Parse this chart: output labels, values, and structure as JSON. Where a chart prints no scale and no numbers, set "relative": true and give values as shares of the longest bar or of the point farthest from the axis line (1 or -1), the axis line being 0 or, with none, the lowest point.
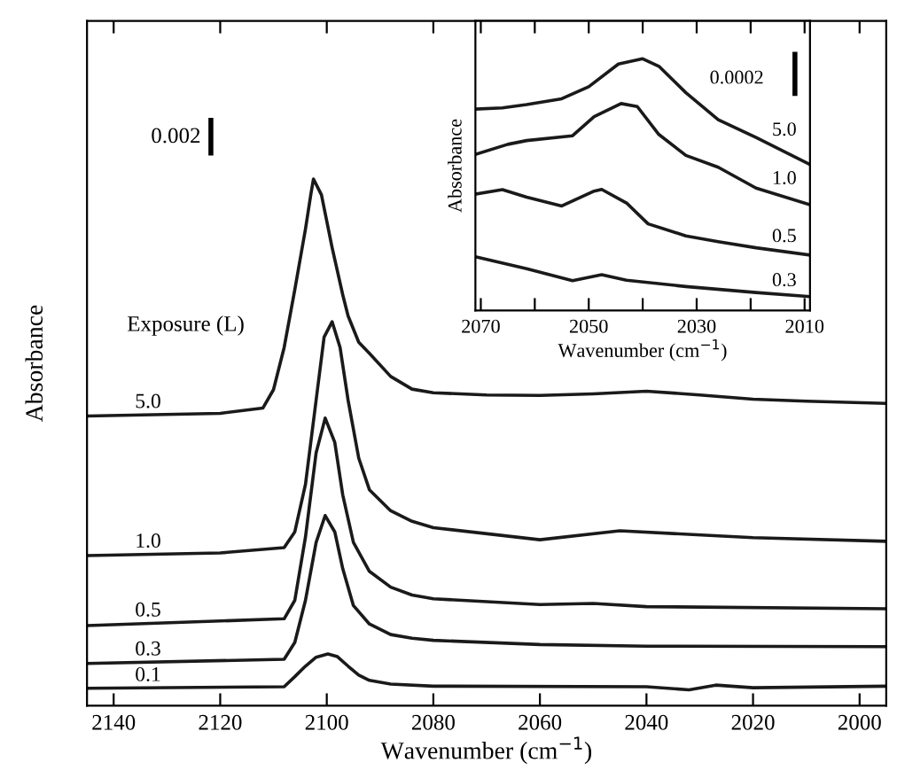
{
  "chart_data": [
    {
      "type": "line",
      "relative": true,
      "xlabel": "Wavenumber (cm$^{−1}$)",
      "ylabel": "Absorbance",
      "xlim": [
        2145,
        1995
      ],
      "xticks": [
        2140,
        2120,
        2100,
        2080,
        2060,
        2040,
        2020,
        2000
      ],
      "legend": false,
      "annotations": [
        "0.002",
        "Exposure (L)"
      ],
      "series": [
        {
          "name": "5.0",
          "color": "#1a1a1a",
          "x": [
            2145,
            2120,
            2112,
            2110,
            2108,
            2106,
            2104,
            2103,
            2102.5,
            2101,
            2099,
            2097,
            2096,
            2094,
            2092,
            2088,
            2084,
            2080,
            2070,
            2060,
            2050,
            2040,
            2030,
            2020,
            2010,
            1995
          ],
          "values": [
            0.55,
            0.555,
            0.565,
            0.6,
            0.68,
            0.79,
            0.905,
            0.97,
            1.0,
            0.97,
            0.87,
            0.78,
            0.74,
            0.69,
            0.669,
            0.625,
            0.601,
            0.594,
            0.59,
            0.589,
            0.592,
            0.597,
            0.59,
            0.582,
            0.578,
            0.574
          ]
        },
        {
          "name": "1.0",
          "color": "#1a1a1a",
          "x": [
            2145,
            2120,
            2108,
            2106,
            2104,
            2102,
            2100.5,
            2099,
            2097.5,
            2096,
            2094,
            2092,
            2088,
            2084,
            2080,
            2060,
            2045,
            2020,
            1995
          ],
          "values": [
            0.285,
            0.29,
            0.3,
            0.33,
            0.42,
            0.58,
            0.7,
            0.729,
            0.68,
            0.58,
            0.47,
            0.41,
            0.37,
            0.35,
            0.338,
            0.315,
            0.332,
            0.319,
            0.312
          ]
        },
        {
          "name": "0.5",
          "color": "#1a1a1a",
          "x": [
            2145,
            2108,
            2106,
            2104,
            2102,
            2100.3,
            2098.5,
            2097,
            2095,
            2092,
            2088,
            2084,
            2080,
            2060,
            2050,
            2040,
            1995
          ],
          "values": [
            0.152,
            0.165,
            0.2,
            0.32,
            0.48,
            0.546,
            0.5,
            0.4,
            0.31,
            0.255,
            0.225,
            0.21,
            0.203,
            0.192,
            0.194,
            0.188,
            0.184
          ]
        },
        {
          "name": "0.3",
          "color": "#1a1a1a",
          "x": [
            2145,
            2108,
            2106,
            2104,
            2102,
            2100.3,
            2098.5,
            2097,
            2095,
            2092,
            2088,
            2084,
            2080,
            2060,
            2040,
            1995
          ],
          "values": [
            0.08,
            0.088,
            0.12,
            0.2,
            0.31,
            0.361,
            0.33,
            0.26,
            0.19,
            0.155,
            0.135,
            0.128,
            0.124,
            0.116,
            0.113,
            0.112
          ]
        },
        {
          "name": "0.1",
          "color": "#1a1a1a",
          "x": [
            2145,
            2108,
            2106,
            2104,
            2102,
            2099.8,
            2098,
            2096,
            2094,
            2092,
            2088,
            2080,
            2040,
            2032,
            2027,
            2020,
            1995
          ],
          "values": [
            0.033,
            0.036,
            0.055,
            0.075,
            0.092,
            0.098,
            0.093,
            0.075,
            0.058,
            0.048,
            0.041,
            0.037,
            0.036,
            0.03,
            0.039,
            0.034,
            0.037
          ]
        }
      ]
    },
    {
      "type": "line",
      "relative": true,
      "xlabel": "Wavenumber (cm$^{−1}$)",
      "ylabel": "Absorbance",
      "xlim": [
        2071,
        2009
      ],
      "xticks": [
        2070,
        {
          "value": 2060,
          "label": null
        },
        2050,
        {
          "value": 2040,
          "label": null
        },
        2030,
        {
          "value": 2020,
          "label": null
        },
        2010
      ],
      "legend": false,
      "annotations": [
        "0.0002"
      ],
      "series": [
        {
          "name": "5.0",
          "color": "#1a1a1a",
          "x": [
            2071,
            2066,
            2061.5,
            2055,
            2050,
            2044.5,
            2040,
            2037,
            2032,
            2026,
            2019,
            2009
          ],
          "values": [
            0.8,
            0.805,
            0.818,
            0.841,
            0.889,
            0.979,
            1.0,
            0.97,
            0.865,
            0.758,
            0.687,
            0.58
          ]
        },
        {
          "name": "1.0",
          "color": "#1a1a1a",
          "x": [
            2071,
            2065,
            2061.5,
            2053,
            2049,
            2044,
            2041,
            2037,
            2032,
            2026,
            2019,
            2009
          ],
          "values": [
            0.62,
            0.66,
            0.675,
            0.694,
            0.77,
            0.822,
            0.81,
            0.699,
            0.616,
            0.569,
            0.486,
            0.42
          ]
        },
        {
          "name": "0.5",
          "color": "#1a1a1a",
          "x": [
            2071,
            2066,
            2061.5,
            2055,
            2049,
            2047.6,
            2043,
            2039,
            2032,
            2026,
            2019,
            2009
          ],
          "values": [
            0.462,
            0.48,
            0.45,
            0.415,
            0.474,
            0.481,
            0.427,
            0.344,
            0.296,
            0.273,
            0.249,
            0.22
          ]
        },
        {
          "name": "0.3",
          "color": "#1a1a1a",
          "x": [
            2071,
            2061.5,
            2053,
            2047.6,
            2043,
            2032,
            2019,
            2009
          ],
          "values": [
            0.213,
            0.166,
            0.118,
            0.142,
            0.12,
            0.095,
            0.071,
            0.055
          ]
        }
      ]
    }
  ]
}
